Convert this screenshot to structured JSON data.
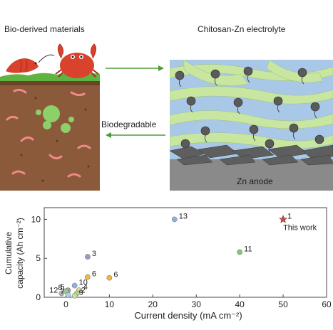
{
  "header": {
    "left_title": "Bio-derived materials",
    "right_title": "Chitosan-Zn electrolyte"
  },
  "arrows": {
    "bottom_label": "Biodegradable"
  },
  "electrolyte": {
    "anode_label": "Zn anode"
  },
  "colors": {
    "soil_brown": "#8a5a3a",
    "grass_green": "#5fb340",
    "fiber_green": "#c8e6a0",
    "fiber_blue": "#a9c8e8",
    "arrow_green": "#4e9a3a",
    "star_red": "#c0504d"
  },
  "chart_data": {
    "type": "scatter",
    "xlabel": "Current density (mA cm⁻²)",
    "ylabel_line1": "Cumulative",
    "ylabel_line2": "capacity (Ah cm⁻²)",
    "xlim": [
      -5,
      60
    ],
    "ylim": [
      0,
      11.5
    ],
    "x_ticks": [
      "0",
      "10",
      "20",
      "30",
      "40",
      "50",
      "60"
    ],
    "y_ticks": [
      "0",
      "5",
      "10"
    ],
    "points": [
      {
        "label": "1",
        "x": 50,
        "y": 10,
        "color": "#c0504d",
        "marker": "star",
        "note": "This work"
      },
      {
        "label": "13",
        "x": 25,
        "y": 10,
        "color": "#8fb3e0",
        "marker": "circle"
      },
      {
        "label": "11",
        "x": 40,
        "y": 5.8,
        "color": "#8cc46a",
        "marker": "circle"
      },
      {
        "label": "3",
        "x": 5,
        "y": 5.2,
        "color": "#9a9ac8",
        "marker": "circle"
      },
      {
        "label": "6",
        "x": 5,
        "y": 2.6,
        "color": "#f0b840",
        "marker": "circle"
      },
      {
        "label": "6",
        "x": 10,
        "y": 2.5,
        "color": "#f0b840",
        "marker": "circle"
      },
      {
        "label": "10",
        "x": 2,
        "y": 1.5,
        "color": "#8fb3e0",
        "marker": "circle"
      },
      {
        "label": "4",
        "x": 3,
        "y": 0.9,
        "color": "#d8d8a0",
        "marker": "circle"
      },
      {
        "label": "5",
        "x": 0.5,
        "y": 0.9,
        "color": "#a0a0a0",
        "marker": "circle"
      },
      {
        "label": "8",
        "x": 0,
        "y": 0.8,
        "color": "#9ac890",
        "marker": "circle"
      },
      {
        "label": "12",
        "x": -1,
        "y": 0.5,
        "color": "#b8b8b8",
        "marker": "circle"
      },
      {
        "label": "7",
        "x": 0.5,
        "y": 0.3,
        "color": "#a8d0e8",
        "marker": "circle"
      },
      {
        "label": "2",
        "x": 2.5,
        "y": 0.5,
        "color": "#b0d890",
        "marker": "circle"
      },
      {
        "label": "9",
        "x": 2,
        "y": 0.2,
        "color": "#c8e0a8",
        "marker": "circle"
      }
    ]
  }
}
